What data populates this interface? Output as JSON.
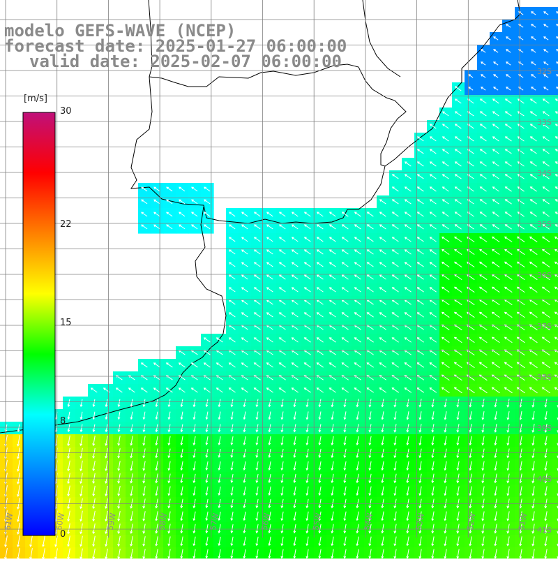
{
  "title": {
    "model": "modelo GEFS-WAVE (NCEP)",
    "forecast": "forecast date: 2025-01-27 06:00:00",
    "valid": "valid date: 2025-02-07 06:00:00"
  },
  "colorbar": {
    "unit": "[m/s]",
    "ticks": [
      {
        "value": 30,
        "label": "30"
      },
      {
        "value": 22,
        "label": "22"
      },
      {
        "value": 15,
        "label": "15"
      },
      {
        "value": 8,
        "label": "8"
      },
      {
        "value": 0,
        "label": "0"
      }
    ],
    "min": 0,
    "max": 30,
    "colors": [
      "#0000ff",
      "#0080ff",
      "#00ffff",
      "#00ff00",
      "#ffff00",
      "#ff8000",
      "#ff0000",
      "#c0107a"
    ]
  },
  "map": {
    "lon_labels": [
      "61W",
      "60W",
      "59W",
      "58W",
      "57W",
      "56W",
      "55W",
      "54W",
      "53W",
      "52W",
      "51W"
    ],
    "lat_labels": [
      "32S",
      "33S",
      "34S",
      "35S",
      "36S",
      "37S",
      "38S",
      "39S",
      "40S",
      "41S"
    ],
    "grid_color": "#808080",
    "coast_color": "#000000",
    "arrow_color": "#ffffff"
  }
}
